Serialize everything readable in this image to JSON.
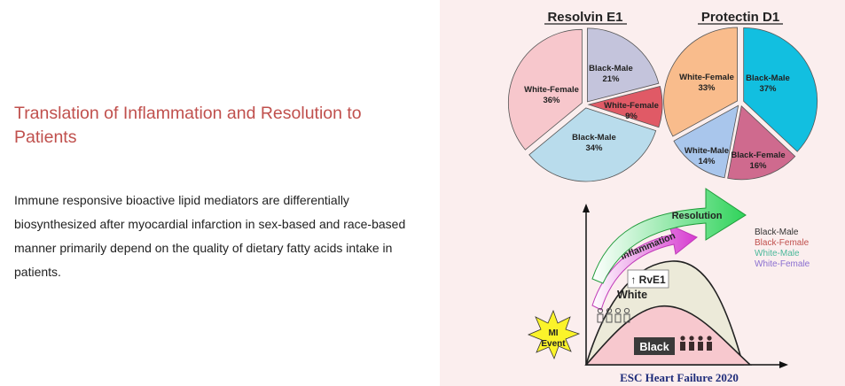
{
  "slide": {
    "title": "Translation of Inflammation and Resolution to Patients",
    "body": "Immune responsive bioactive lipid mediators are differentially biosynthesized after myocardial infarction in sex-based and race-based manner primarily depend on the quality of dietary fatty acids intake in patients."
  },
  "figure": {
    "caption": "ESC Heart Failure 2020",
    "resolution_label": "Resolution",
    "inflammation_label": "Inflammation",
    "rve1_label": "↑ RvE1",
    "white_label": "White",
    "black_label": "Black",
    "mi_label_line1": "MI",
    "mi_label_line2": "Event",
    "legend": [
      {
        "label": "Black-Male",
        "color": "#333333"
      },
      {
        "label": "Black-Female",
        "color": "#c0504d"
      },
      {
        "label": "White-Male",
        "color": "#4bb89a"
      },
      {
        "label": "White-Female",
        "color": "#8a6fd0"
      }
    ]
  },
  "chart_data": [
    {
      "type": "pie",
      "title": "Resolvin E1",
      "slices": [
        {
          "name": "Black-Male",
          "value": 21,
          "label": "21%",
          "color": "#c4c4dc"
        },
        {
          "name": "White-Female",
          "value": 9,
          "label": "9%",
          "color": "#e05a66"
        },
        {
          "name": "Black-Male",
          "value": 34,
          "label": "34%",
          "color": "#b9dcec"
        },
        {
          "name": "White-Female",
          "value": 36,
          "label": "36%",
          "color": "#f7c7cc"
        }
      ]
    },
    {
      "type": "pie",
      "title": "Protectin D1",
      "slices": [
        {
          "name": "Black-Male",
          "value": 37,
          "label": "37%",
          "color": "#12bfe0"
        },
        {
          "name": "Black-Female",
          "value": 16,
          "label": "16%",
          "color": "#cf6a8e"
        },
        {
          "name": "White-Male",
          "value": 14,
          "label": "14%",
          "color": "#a9c6ec"
        },
        {
          "name": "White-Female",
          "value": 33,
          "label": "33%",
          "color": "#f9bc8c"
        }
      ]
    }
  ]
}
